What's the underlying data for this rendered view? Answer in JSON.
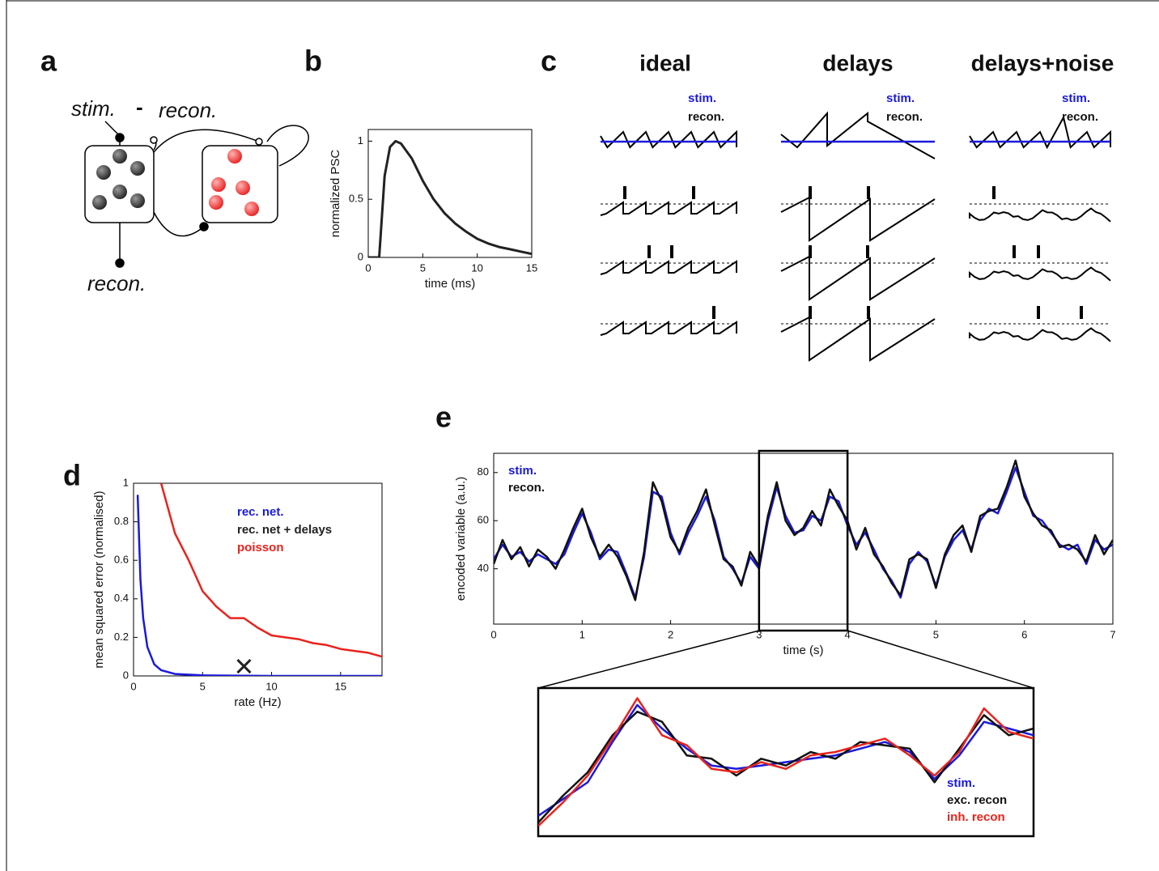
{
  "panel_labels": [
    "a",
    "b",
    "c",
    "d",
    "e"
  ],
  "diagram": {
    "stim": "stim.",
    "minus": "-",
    "recon_top": "recon.",
    "recon_bottom": "recon."
  },
  "schematic": {
    "columns": [
      "ideal",
      "delays",
      "delays+noise"
    ],
    "stim": "stim.",
    "recon": "recon."
  },
  "chart_data": [
    {
      "type": "line",
      "xlabel": "time (ms)",
      "ylabel": "normalized PSC",
      "x": [
        0,
        1,
        1.5,
        2,
        2.5,
        3,
        4,
        5,
        6,
        7,
        8,
        9,
        10,
        11,
        12,
        13,
        14,
        15
      ],
      "series": [
        {
          "color": "#222222",
          "values": [
            0,
            0,
            0.7,
            0.95,
            1,
            0.98,
            0.85,
            0.66,
            0.5,
            0.38,
            0.29,
            0.22,
            0.16,
            0.12,
            0.09,
            0.07,
            0.05,
            0.03
          ]
        }
      ],
      "xlim": [
        0,
        15
      ],
      "ylim": [
        0,
        1.1
      ],
      "xticks": [
        0,
        5,
        10,
        15
      ],
      "yticks": [
        0,
        0.5,
        1
      ]
    },
    {
      "type": "line",
      "xlabel": "rate (Hz)",
      "ylabel": "mean squared error (normalised)",
      "series": [
        {
          "name": "rec. net.",
          "color": "#1a1adc",
          "x": [
            0.3,
            0.5,
            0.7,
            1,
            1.5,
            2,
            3,
            5,
            10,
            18
          ],
          "values": [
            0.94,
            0.5,
            0.3,
            0.15,
            0.06,
            0.03,
            0.01,
            0.003,
            0,
            0
          ]
        },
        {
          "name": "rec. net + delays",
          "color": "#222222",
          "mode": "markers",
          "x": [
            8
          ],
          "values": [
            0.05
          ]
        },
        {
          "name": "poisson",
          "color": "#e8231c",
          "x": [
            2,
            3,
            4,
            5,
            6,
            7,
            8,
            9,
            10,
            11,
            12,
            13,
            14,
            15,
            16,
            17,
            18
          ],
          "values": [
            1,
            0.74,
            0.6,
            0.44,
            0.36,
            0.3,
            0.3,
            0.25,
            0.21,
            0.2,
            0.19,
            0.17,
            0.16,
            0.14,
            0.13,
            0.12,
            0.1
          ]
        }
      ],
      "xlim": [
        0,
        18
      ],
      "ylim": [
        0,
        1
      ],
      "xticks": [
        0,
        5,
        10,
        15
      ],
      "yticks": [
        0,
        0.2,
        0.4,
        0.6,
        0.8,
        1
      ]
    },
    {
      "type": "line",
      "xlabel": "time (s)",
      "ylabel": "encoded variable (a.u.)",
      "x": [
        0,
        0.1,
        0.2,
        0.3,
        0.4,
        0.5,
        0.6,
        0.7,
        0.8,
        0.9,
        1,
        1.1,
        1.2,
        1.3,
        1.4,
        1.5,
        1.6,
        1.7,
        1.8,
        1.9,
        2,
        2.1,
        2.2,
        2.3,
        2.4,
        2.5,
        2.6,
        2.7,
        2.8,
        2.9,
        3,
        3.1,
        3.2,
        3.3,
        3.4,
        3.5,
        3.6,
        3.7,
        3.8,
        3.9,
        4,
        4.1,
        4.2,
        4.3,
        4.4,
        4.5,
        4.6,
        4.7,
        4.8,
        4.9,
        5,
        5.1,
        5.2,
        5.3,
        5.4,
        5.5,
        5.6,
        5.7,
        5.8,
        5.9,
        6,
        6.1,
        6.2,
        6.3,
        6.4,
        6.5,
        6.6,
        6.7,
        6.8,
        6.9,
        7
      ],
      "series": [
        {
          "name": "stim.",
          "color": "#1a1adc",
          "values": [
            44,
            50,
            45,
            47,
            43,
            46,
            44,
            42,
            46,
            55,
            63,
            55,
            44,
            48,
            47,
            38,
            28,
            45,
            72,
            70,
            55,
            46,
            55,
            62,
            70,
            60,
            45,
            40,
            34,
            45,
            40,
            60,
            74,
            62,
            55,
            56,
            62,
            60,
            70,
            68,
            58,
            50,
            55,
            48,
            40,
            35,
            28,
            42,
            47,
            43,
            33,
            45,
            52,
            56,
            48,
            60,
            65,
            63,
            72,
            82,
            72,
            62,
            60,
            55,
            50,
            48,
            50,
            42,
            52,
            48,
            50
          ]
        },
        {
          "name": "recon.",
          "color": "#111111",
          "values": [
            42,
            52,
            44,
            49,
            41,
            48,
            45,
            40,
            48,
            57,
            65,
            53,
            45,
            50,
            45,
            37,
            27,
            47,
            76,
            68,
            53,
            47,
            57,
            64,
            73,
            58,
            44,
            41,
            33,
            47,
            41,
            62,
            76,
            60,
            54,
            57,
            64,
            58,
            73,
            66,
            60,
            48,
            57,
            46,
            41,
            34,
            29,
            44,
            46,
            44,
            32,
            46,
            54,
            58,
            47,
            62,
            64,
            65,
            74,
            85,
            70,
            63,
            58,
            56,
            49,
            50,
            48,
            43,
            54,
            46,
            52
          ]
        }
      ],
      "xlim": [
        0,
        7
      ],
      "ylim": [
        17,
        88
      ],
      "xticks": [
        0,
        1,
        2,
        3,
        4,
        5,
        6,
        7
      ],
      "yticks": [
        40,
        60,
        80
      ],
      "zoom_xlim": [
        3,
        4
      ]
    },
    {
      "type": "line",
      "x": [
        3,
        3.05,
        3.1,
        3.15,
        3.2,
        3.25,
        3.3,
        3.35,
        3.4,
        3.45,
        3.5,
        3.55,
        3.6,
        3.65,
        3.7,
        3.75,
        3.8,
        3.85,
        3.9,
        3.95,
        4
      ],
      "series": [
        {
          "name": "stim.",
          "color": "#1a1adc",
          "values": [
            40,
            45,
            50,
            62,
            73,
            66,
            60,
            55,
            54,
            55,
            56,
            57,
            58,
            60,
            62,
            59,
            51,
            58,
            68,
            66,
            64
          ]
        },
        {
          "name": "exc. recon",
          "color": "#111111",
          "values": [
            38,
            46,
            53,
            64,
            71,
            68,
            58,
            57,
            52,
            57,
            55,
            59,
            57,
            62,
            61,
            60,
            50,
            60,
            70,
            64,
            66
          ]
        },
        {
          "name": "inh. recon",
          "color": "#e8231c",
          "values": [
            37,
            44,
            52,
            63,
            75,
            64,
            61,
            54,
            53,
            56,
            54,
            58,
            59,
            61,
            63,
            58,
            52,
            59,
            72,
            65,
            63
          ]
        }
      ],
      "xlim": [
        3,
        4
      ]
    }
  ]
}
